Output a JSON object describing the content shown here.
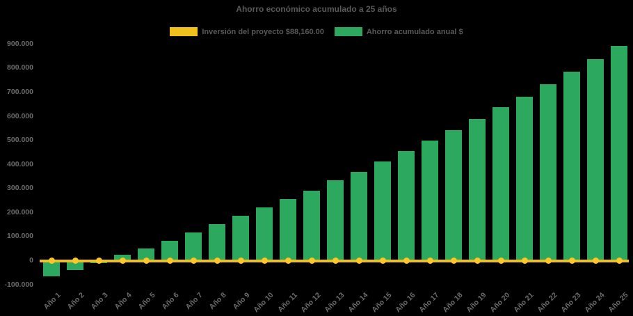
{
  "title": "Ahorro económico acumulado a 25 años",
  "legend": {
    "investment_label": "Inversión del proyecto $88,160.00",
    "savings_label": "Ahorro acumulado anual $"
  },
  "colors": {
    "background": "#000000",
    "bar_green": "#2CA95F",
    "line_yellow": "#F0C01D",
    "marker_yellow": "#FFC62A",
    "title_text": "#595959",
    "axis_text": "#6C6C6C"
  },
  "chart_data": {
    "type": "bar",
    "title": "Ahorro económico acumulado a 25 años",
    "categories": [
      "Año 1",
      "Año 2",
      "Año 3",
      "Año 4",
      "Año 5",
      "Año 6",
      "Año 7",
      "Año 8",
      "Año 9",
      "Año 10",
      "Año 11",
      "Año 12",
      "Año 13",
      "Año 14",
      "Año 15",
      "Año 16",
      "Año 17",
      "Año 18",
      "Año 19",
      "Año 20",
      "Año 21",
      "Año 22",
      "Año 23",
      "Año 24",
      "Año 25"
    ],
    "series": [
      {
        "name": "Ahorro acumulado anual $",
        "type": "bar",
        "color": "#2CA95F",
        "values": [
          -66000,
          -40000,
          -10000,
          26000,
          52000,
          83000,
          116000,
          152000,
          186000,
          220000,
          255000,
          292000,
          334000,
          368000,
          412000,
          455000,
          498000,
          541000,
          588000,
          639000,
          682000,
          733000,
          785000,
          837000,
          893000
        ]
      },
      {
        "name": "Inversión del proyecto $88,160.00",
        "type": "line",
        "color": "#F0C01D",
        "marker_color": "#FFC62A",
        "constant_value": 0
      }
    ],
    "y_axis": {
      "min": -100000,
      "max": 900000,
      "tick_step": 100000,
      "tick_values": [
        900000,
        800000,
        700000,
        600000,
        500000,
        400000,
        300000,
        200000,
        100000,
        0,
        -100000
      ],
      "tick_labels": [
        "900.000",
        "800.000",
        "700.000",
        "600.000",
        "500.000",
        "400.000",
        "300.000",
        "200.000",
        "100.000",
        "0",
        "-100.000"
      ]
    },
    "x_axis": {
      "label_rotation_deg": -45
    },
    "legend_position": "top",
    "grid": false,
    "background": "black"
  }
}
